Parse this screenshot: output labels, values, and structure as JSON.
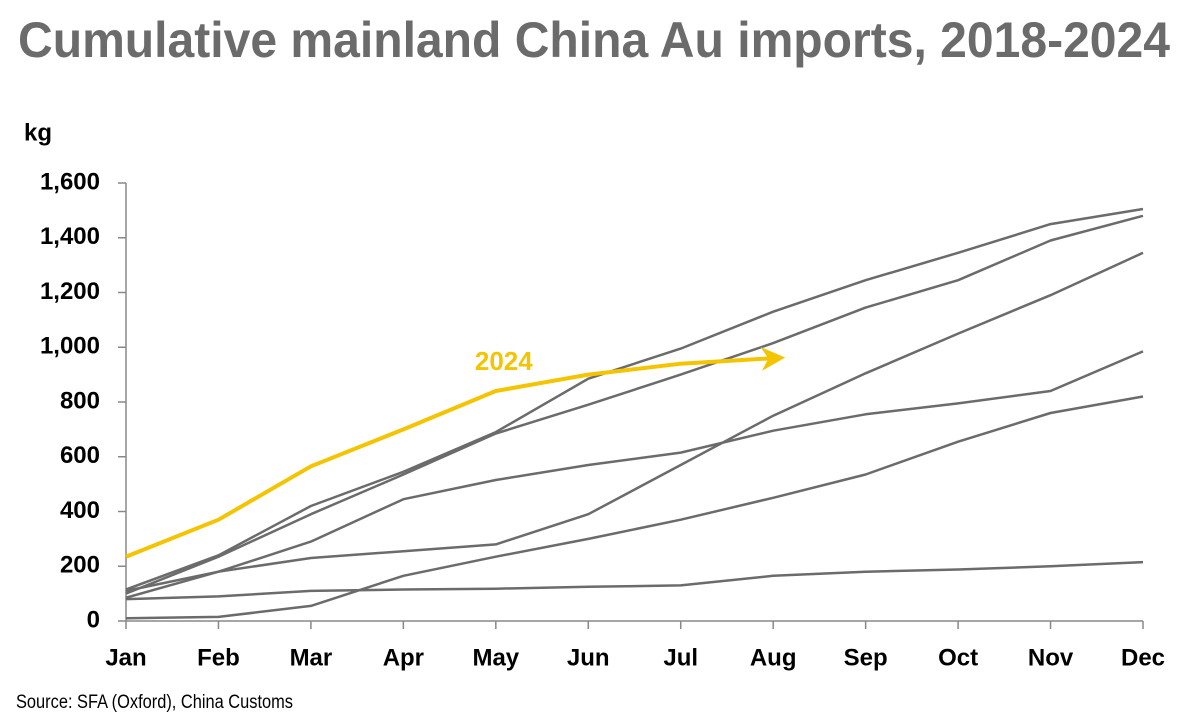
{
  "chart_data": {
    "type": "line",
    "title": "Cumulative mainland China Au imports, 2018-2024",
    "y_label": "kg",
    "source": "Source: SFA (Oxford), China Customs",
    "categories": [
      "Jan",
      "Feb",
      "Mar",
      "Apr",
      "May",
      "Jun",
      "Jul",
      "Aug",
      "Sep",
      "Oct",
      "Nov",
      "Dec"
    ],
    "ylim": [
      0,
      1600
    ],
    "yticks": [
      0,
      200,
      400,
      600,
      800,
      {
        "value": 1000,
        "label": "1,000"
      },
      {
        "value": 1200,
        "label": "1,200"
      },
      {
        "value": 1400,
        "label": "1,400"
      },
      {
        "value": 1600,
        "label": "1,600"
      }
    ],
    "series": [
      {
        "color": "#6b6b6b",
        "values": [
          115,
          240,
          420,
          545,
          690,
          885,
          995,
          1130,
          1245,
          1345,
          1450,
          1505
        ]
      },
      {
        "color": "#6b6b6b",
        "values": [
          100,
          235,
          390,
          535,
          685,
          790,
          900,
          1015,
          1145,
          1245,
          1390,
          1480
        ]
      },
      {
        "color": "#6b6b6b",
        "values": [
          110,
          180,
          230,
          255,
          280,
          390,
          570,
          750,
          905,
          1050,
          1190,
          1345
        ]
      },
      {
        "color": "#6b6b6b",
        "values": [
          85,
          180,
          290,
          445,
          515,
          570,
          615,
          695,
          755,
          795,
          840,
          985
        ]
      },
      {
        "color": "#6b6b6b",
        "values": [
          10,
          15,
          55,
          165,
          235,
          300,
          370,
          450,
          535,
          655,
          760,
          820
        ]
      },
      {
        "color": "#6b6b6b",
        "values": [
          80,
          90,
          110,
          115,
          118,
          125,
          130,
          165,
          180,
          188,
          200,
          215
        ]
      },
      {
        "name": "2024",
        "color": "#f5c400",
        "values": [
          235,
          370,
          565,
          700,
          840,
          900,
          940,
          960,
          null,
          null,
          null,
          null
        ]
      }
    ]
  }
}
